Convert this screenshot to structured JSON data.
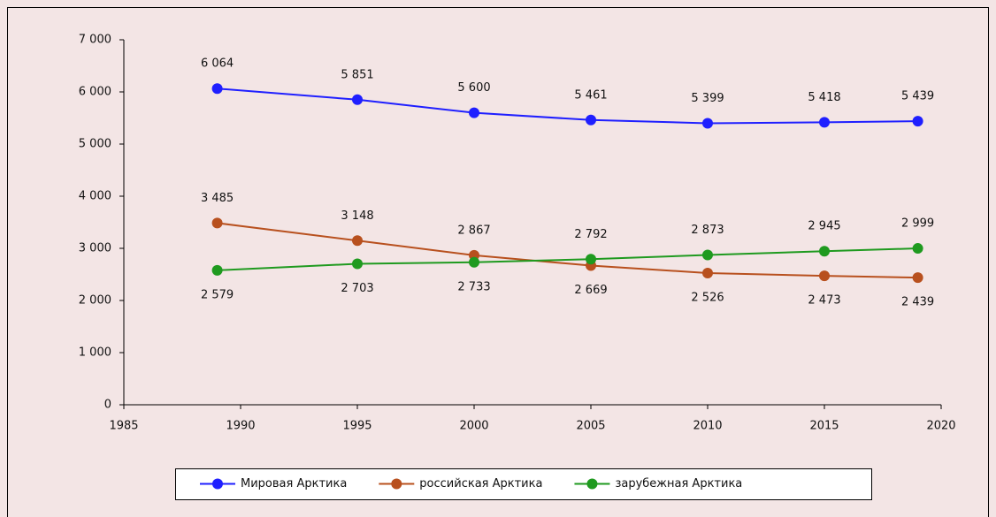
{
  "chart_data": {
    "type": "line",
    "x": [
      1989,
      1995,
      2000,
      2005,
      2010,
      2015,
      2019
    ],
    "series": [
      {
        "name": "Мировая Арктика",
        "color": "#1f1fff",
        "values": [
          6064,
          5851,
          5600,
          5461,
          5399,
          5418,
          5439
        ],
        "value_labels": [
          "6 064",
          "5 851",
          "5 600",
          "5 461",
          "5 399",
          "5 418",
          "5 439"
        ]
      },
      {
        "name": "российская  Арктика",
        "color": "#b8501e",
        "values": [
          3485,
          3148,
          2867,
          2669,
          2526,
          2473,
          2439
        ],
        "value_labels": [
          "3 485",
          "3 148",
          "2 867",
          "2 669",
          "2 526",
          "2 473",
          "2 439"
        ]
      },
      {
        "name": "зарубежная Арктика",
        "color": "#1f9a1f",
        "values": [
          2579,
          2703,
          2733,
          2792,
          2873,
          2945,
          2999
        ],
        "value_labels": [
          "2 579",
          "2 703",
          "2 733",
          "2 792",
          "2 873",
          "2 945",
          "2 999"
        ]
      }
    ],
    "xlim": [
      1985,
      2020
    ],
    "xticks": [
      1985,
      1990,
      1995,
      2000,
      2005,
      2010,
      2015,
      2020
    ],
    "ylim": [
      0,
      7000
    ],
    "yticks": [
      0,
      {
        "value": 1000,
        "label": "1 000"
      },
      {
        "value": 2000,
        "label": "2 000"
      },
      {
        "value": 3000,
        "label": "3 000"
      },
      {
        "value": 4000,
        "label": "4 000"
      },
      {
        "value": 5000,
        "label": "5 000"
      },
      {
        "value": 6000,
        "label": "6 000"
      },
      {
        "value": 7000,
        "label": "7 000"
      }
    ],
    "grid": false,
    "legend": "bottom"
  }
}
